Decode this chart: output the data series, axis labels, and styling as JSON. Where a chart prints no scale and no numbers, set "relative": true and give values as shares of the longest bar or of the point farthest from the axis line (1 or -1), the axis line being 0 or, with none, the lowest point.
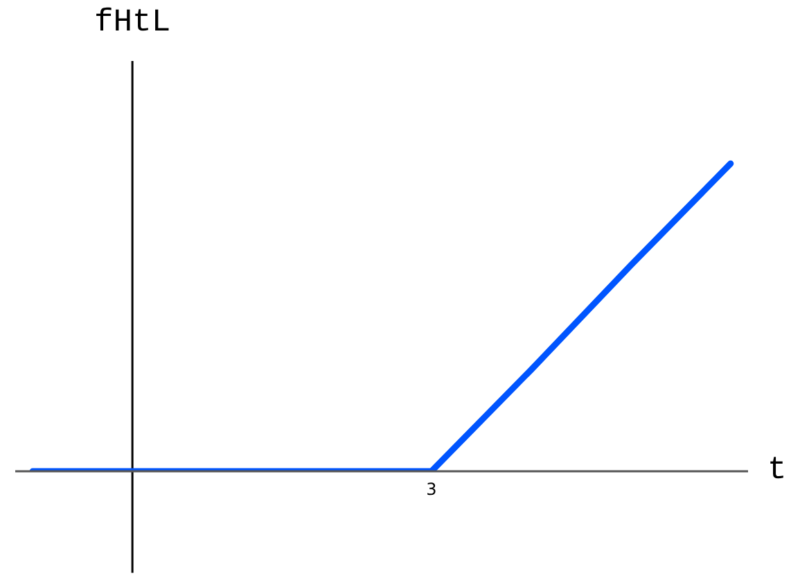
{
  "chart_data": {
    "type": "line",
    "xlabel": "t",
    "ylabel": "fHtL",
    "categories": [
      null,
      null,
      null,
      null,
      null,
      null,
      null,
      null
    ],
    "values": [
      0,
      0,
      0,
      0,
      0,
      0.33,
      0.67,
      1
    ],
    "relative": true,
    "color": "#0055ff",
    "annotations": [
      {
        "text": "3",
        "y": 0
      }
    ],
    "marker": "none",
    "line_style": "solid"
  }
}
